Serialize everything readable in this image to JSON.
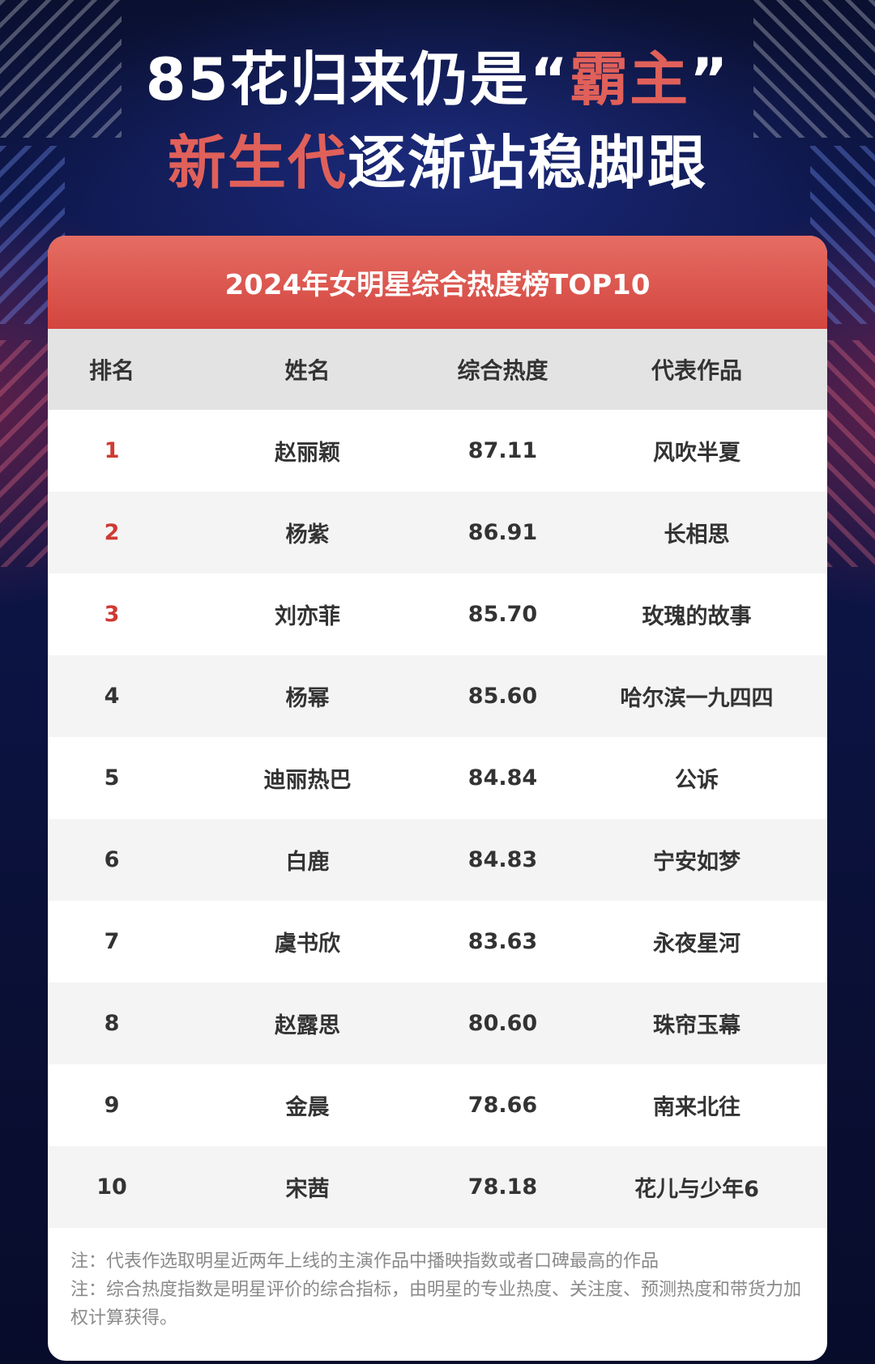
{
  "headline": {
    "line1_white": "85花归来仍是“",
    "line1_red": "霸主",
    "line1_close": "”",
    "line2_red": "新生代",
    "line2_white": "逐渐站稳脚跟"
  },
  "table": {
    "title": "2024年女明星综合热度榜TOP10",
    "columns": [
      "排名",
      "姓名",
      "综合热度",
      "代表作品"
    ],
    "rows": [
      {
        "rank": "1",
        "name": "赵丽颖",
        "score": "87.11",
        "work": "风吹半夏"
      },
      {
        "rank": "2",
        "name": "杨紫",
        "score": "86.91",
        "work": "长相思"
      },
      {
        "rank": "3",
        "name": "刘亦菲",
        "score": "85.70",
        "work": "玫瑰的故事"
      },
      {
        "rank": "4",
        "name": "杨幂",
        "score": "85.60",
        "work": "哈尔滨一九四四"
      },
      {
        "rank": "5",
        "name": "迪丽热巴",
        "score": "84.84",
        "work": "公诉"
      },
      {
        "rank": "6",
        "name": "白鹿",
        "score": "84.83",
        "work": "宁安如梦"
      },
      {
        "rank": "7",
        "name": "虞书欣",
        "score": "83.63",
        "work": "永夜星河"
      },
      {
        "rank": "8",
        "name": "赵露思",
        "score": "80.60",
        "work": "珠帘玉幕"
      },
      {
        "rank": "9",
        "name": "金晨",
        "score": "78.66",
        "work": "南来北往"
      },
      {
        "rank": "10",
        "name": "宋茜",
        "score": "78.18",
        "work": "花儿与少年6"
      }
    ]
  },
  "notes": [
    "注：代表作选取明星近两年上线的主演作品中播映指数或者口碑最高的作品",
    "注：综合热度指数是明星评价的综合指标，由明星的专业热度、关注度、预测热度和带货力加权计算获得。"
  ],
  "colors": {
    "accent_red": "#cf3a33",
    "header_red": "#d3453f",
    "background_navy": "#0b1236"
  }
}
